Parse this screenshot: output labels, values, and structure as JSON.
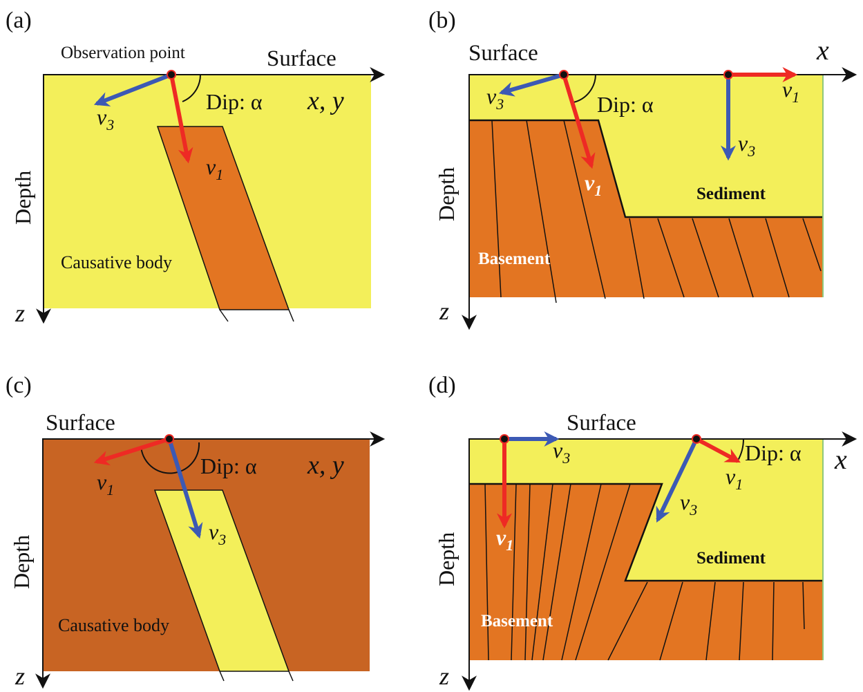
{
  "colors": {
    "yellow": "#f3ef5a",
    "orange": "#e37522",
    "brown": "#c86423",
    "red": "#ee2a24",
    "blue": "#3c59b4",
    "black": "#111111"
  },
  "panels": {
    "a": {
      "tag": "(a)",
      "surface": "Surface",
      "obs_point": "Observation point",
      "dip": "Dip: α",
      "axis_xy": "x, y",
      "depth": "Depth",
      "z": "z",
      "v1": "v",
      "v1_sub": "1",
      "v3": "v",
      "v3_sub": "3",
      "body": "Causative body"
    },
    "b": {
      "tag": "(b)",
      "surface": "Surface",
      "axis_x": "x",
      "dip": "Dip: α",
      "depth": "Depth",
      "z": "z",
      "v1": "v",
      "v1_sub": "1",
      "v3": "v",
      "v3_sub": "3",
      "v1b": "v",
      "v1b_sub": "1",
      "v3b": "v",
      "v3b_sub": "3",
      "sediment": "Sediment",
      "basement": "Basement"
    },
    "c": {
      "tag": "(c)",
      "surface": "Surface",
      "dip": "Dip: α",
      "axis_xy": "x, y",
      "depth": "Depth",
      "z": "z",
      "v1": "v",
      "v1_sub": "1",
      "v3": "v",
      "v3_sub": "3",
      "body": "Causative body"
    },
    "d": {
      "tag": "(d)",
      "surface": "Surface",
      "axis_x": "x",
      "dip": "Dip: α",
      "depth": "Depth",
      "z": "z",
      "v1": "v",
      "v1_sub": "1",
      "v3": "v",
      "v3_sub": "3",
      "v1b": "v",
      "v1b_sub": "1",
      "v3b": "v",
      "v3b_sub": "3",
      "sediment": "Sediment",
      "basement": "Basement"
    }
  }
}
